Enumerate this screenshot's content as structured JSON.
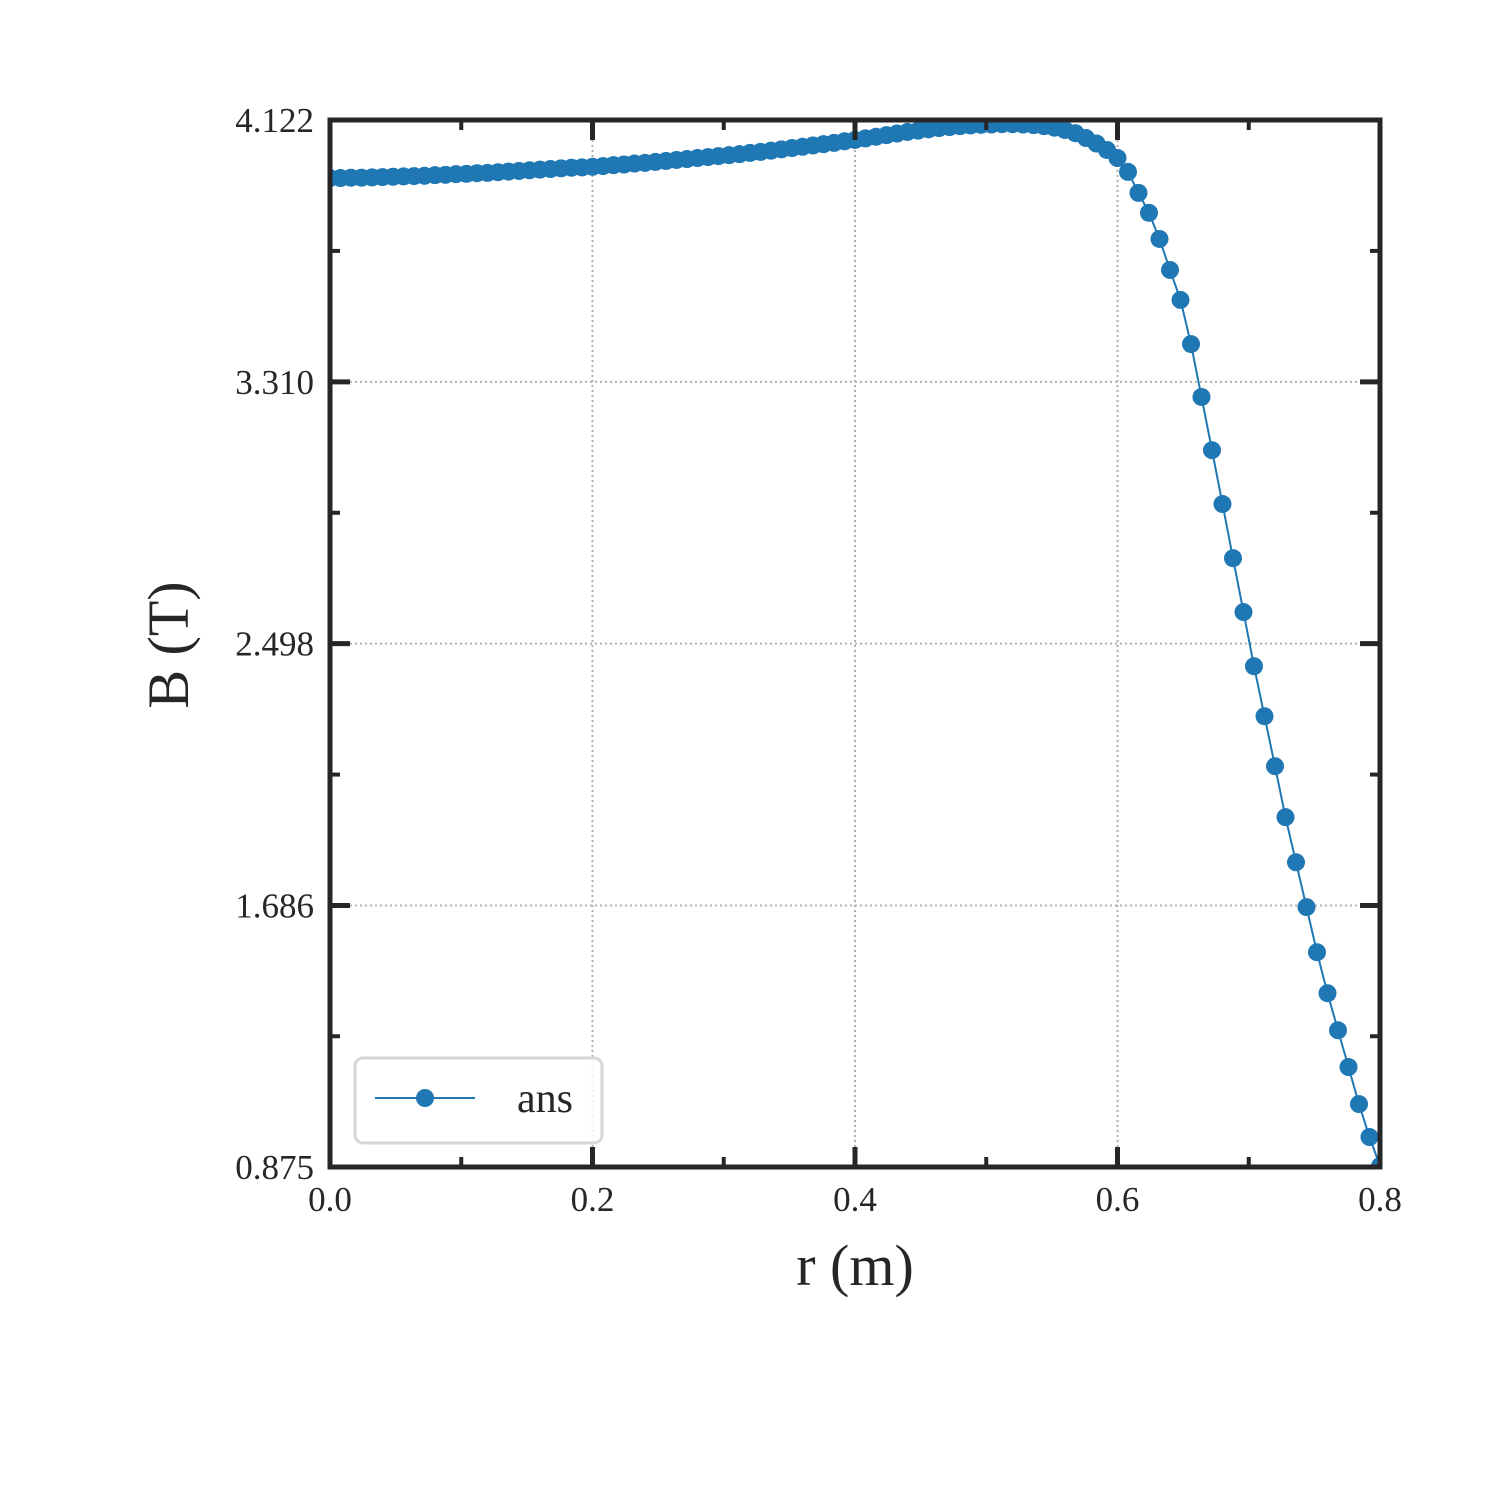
{
  "chart_data": {
    "type": "line",
    "xlabel": "r (m)",
    "ylabel": "B (T)",
    "x": [
      0,
      0.008,
      0.016,
      0.024,
      0.032,
      0.04,
      0.048,
      0.056,
      0.064,
      0.072,
      0.08,
      0.088,
      0.096,
      0.104,
      0.112,
      0.12,
      0.128,
      0.136,
      0.144,
      0.152,
      0.16,
      0.168,
      0.176,
      0.184,
      0.192,
      0.2,
      0.208,
      0.216,
      0.224,
      0.232,
      0.24,
      0.248,
      0.256,
      0.264,
      0.272,
      0.28,
      0.288,
      0.296,
      0.304,
      0.312,
      0.32,
      0.328,
      0.336,
      0.344,
      0.352,
      0.36,
      0.368,
      0.376,
      0.384,
      0.392,
      0.4,
      0.408,
      0.416,
      0.424,
      0.432,
      0.44,
      0.448,
      0.456,
      0.464,
      0.472,
      0.48,
      0.488,
      0.496,
      0.504,
      0.512,
      0.52,
      0.528,
      0.536,
      0.544,
      0.552,
      0.56,
      0.568,
      0.576,
      0.584,
      0.592,
      0.6,
      0.608,
      0.616,
      0.624,
      0.632,
      0.64,
      0.648,
      0.656,
      0.664,
      0.672,
      0.68,
      0.688,
      0.696,
      0.704,
      0.712,
      0.72,
      0.728,
      0.736,
      0.744,
      0.752,
      0.76,
      0.768,
      0.776,
      0.784,
      0.792,
      0.8
    ],
    "series": [
      {
        "name": "ans",
        "color": "#1f77b4",
        "values": [
          3.942,
          3.942,
          3.943,
          3.943,
          3.944,
          3.945,
          3.946,
          3.947,
          3.948,
          3.949,
          3.951,
          3.952,
          3.954,
          3.955,
          3.957,
          3.958,
          3.96,
          3.962,
          3.964,
          3.966,
          3.968,
          3.97,
          3.972,
          3.974,
          3.975,
          3.977,
          3.979,
          3.982,
          3.984,
          3.987,
          3.989,
          3.992,
          3.995,
          3.998,
          4.001,
          4.004,
          4.007,
          4.01,
          4.013,
          4.016,
          4.02,
          4.023,
          4.027,
          4.031,
          4.035,
          4.039,
          4.043,
          4.047,
          4.051,
          4.056,
          4.06,
          4.065,
          4.07,
          4.075,
          4.08,
          4.085,
          4.089,
          4.093,
          4.097,
          4.1,
          4.103,
          4.105,
          4.107,
          4.108,
          4.109,
          4.109,
          4.108,
          4.106,
          4.103,
          4.098,
          4.091,
          4.081,
          4.066,
          4.049,
          4.029,
          4.004,
          3.961,
          3.896,
          3.834,
          3.753,
          3.657,
          3.564,
          3.427,
          3.263,
          3.098,
          2.931,
          2.763,
          2.596,
          2.428,
          2.273,
          2.118,
          1.96,
          1.82,
          1.681,
          1.541,
          1.414,
          1.299,
          1.185,
          1.07,
          0.968,
          0.878
        ]
      }
    ],
    "xlim": [
      0,
      0.8
    ],
    "ylim": [
      0.875,
      4.122
    ],
    "xticks": [
      {
        "value": 0,
        "label": "0.0"
      },
      0.2,
      0.4,
      0.6,
      0.8
    ],
    "yticks": [
      0.875,
      1.686,
      2.498,
      {
        "value": 3.31,
        "label": "3.310"
      },
      4.122
    ],
    "xminor_ticks": [
      0.1,
      0.3,
      0.5,
      0.7
    ],
    "yminor_ticks": [
      1.2805,
      2.092,
      2.904,
      3.716
    ],
    "grid": true,
    "legend": "lower left"
  }
}
